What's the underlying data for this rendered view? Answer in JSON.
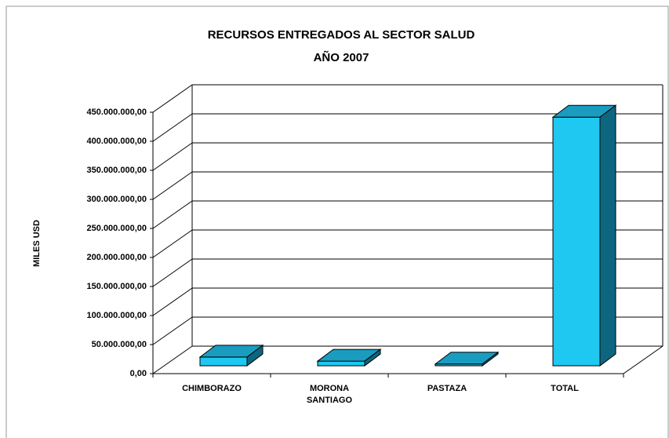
{
  "chart_data": {
    "type": "bar3d",
    "title": "RECURSOS ENTREGADOS AL SECTOR SALUD",
    "subtitle": "AÑO 2007",
    "y_label": "MILES USD",
    "categories": [
      "CHIMBORAZO",
      "MORONA SANTIAGO",
      "PASTAZA",
      "TOTAL"
    ],
    "values": [
      15000000,
      8000000,
      3000000,
      428000000
    ],
    "color": "#1ec8f0",
    "ylim": [
      0,
      450000000
    ],
    "yticks": [
      {
        "value": 0,
        "label": "0,00"
      },
      {
        "value": 50000000,
        "label": "50.000.000,00"
      },
      {
        "value": 100000000,
        "label": "100.000.000,00"
      },
      {
        "value": 150000000,
        "label": "150.000.000,00"
      },
      {
        "value": 200000000,
        "label": "200.000.000,00"
      },
      {
        "value": 250000000,
        "label": "250.000.000,00"
      },
      {
        "value": 300000000,
        "label": "300.000.000,00"
      },
      {
        "value": 350000000,
        "label": "350.000.000,00"
      },
      {
        "value": 400000000,
        "label": "400.000.000,00"
      },
      {
        "value": 450000000,
        "label": "450.000.000,00"
      }
    ],
    "grid": true
  }
}
